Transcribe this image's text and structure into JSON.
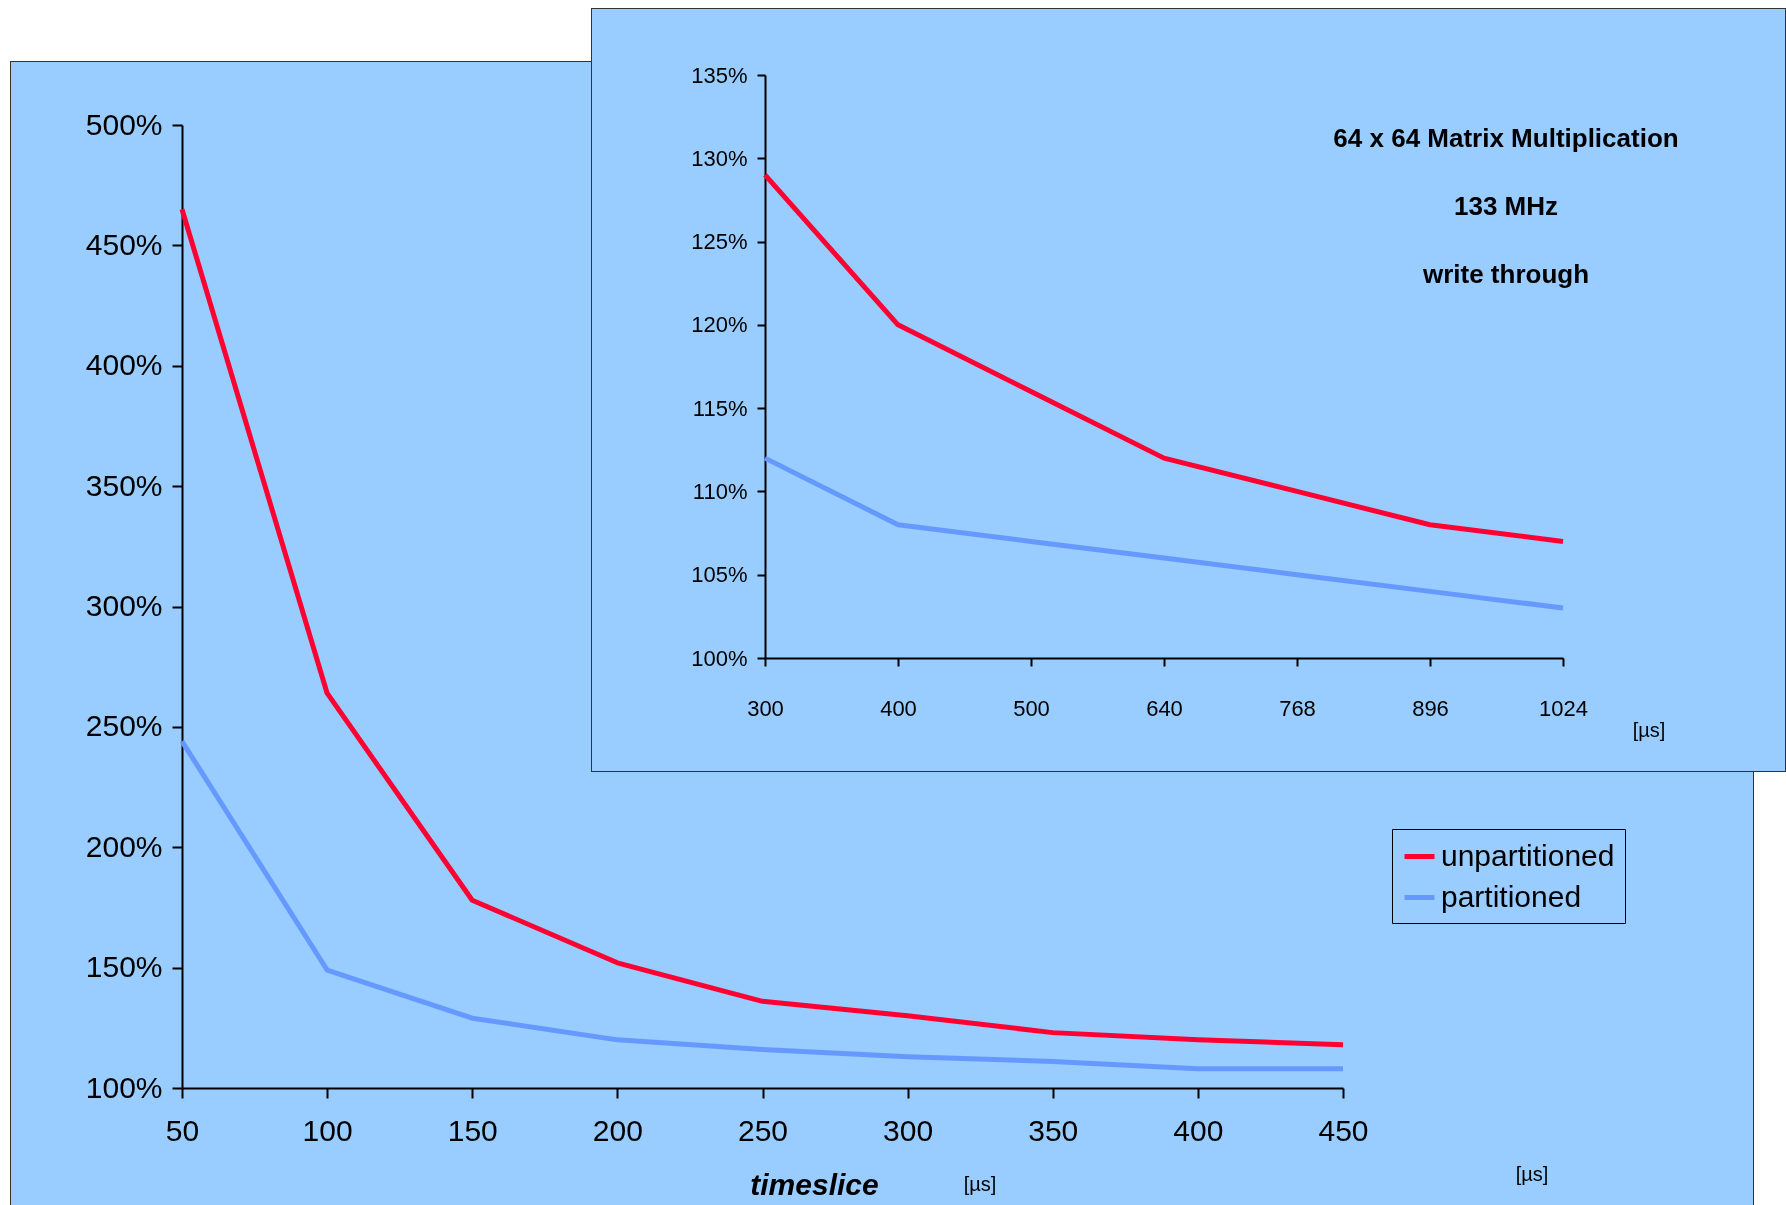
{
  "chart_data": [
    {
      "type": "line",
      "xlabel": "timeslice",
      "x": [
        50,
        100,
        150,
        200,
        250,
        300,
        350,
        400,
        450
      ],
      "series": [
        {
          "name": "unpartitioned",
          "color": "#ff0033",
          "values": [
            465,
            264,
            178,
            152,
            136,
            130,
            123,
            120,
            118
          ]
        },
        {
          "name": "partitioned",
          "color": "#6699ff",
          "values": [
            244,
            149,
            129,
            120,
            116,
            113,
            111,
            108,
            108
          ]
        }
      ],
      "xlim": [
        50,
        450
      ],
      "xticks": [
        50,
        100,
        150,
        200,
        250,
        300,
        350,
        400,
        450
      ],
      "ylim": [
        100,
        500
      ],
      "yticks": [
        {
          "value": 100,
          "label": "100%"
        },
        {
          "value": 150,
          "label": "150%"
        },
        {
          "value": 200,
          "label": "200%"
        },
        {
          "value": 250,
          "label": "250%"
        },
        {
          "value": 300,
          "label": "300%"
        },
        {
          "value": 350,
          "label": "350%"
        },
        {
          "value": 400,
          "label": "400%"
        },
        {
          "value": 450,
          "label": "450%"
        },
        {
          "value": 500,
          "label": "500%"
        }
      ],
      "legend": "right",
      "annotations": [
        "[µs]",
        "[µs]"
      ]
    },
    {
      "type": "line",
      "title": "64 x 64 Matrix Multiplication",
      "subtitle": "133 MHz\nwrite through",
      "categories": [
        "300",
        "400",
        "500",
        "640",
        "768",
        "896",
        "1024"
      ],
      "series": [
        {
          "color": "#ff0033",
          "values": [
            129,
            120,
            116,
            112,
            110,
            108,
            107
          ]
        },
        {
          "color": "#6699ff",
          "values": [
            112,
            108,
            107,
            106,
            105,
            104,
            103
          ]
        }
      ],
      "ylim": [
        100,
        135
      ],
      "yticks": [
        {
          "value": 100,
          "label": "100%"
        },
        {
          "value": 105,
          "label": "105%"
        },
        {
          "value": 110,
          "label": "110%"
        },
        {
          "value": 115,
          "label": "115%"
        },
        {
          "value": 120,
          "label": "120%"
        },
        {
          "value": 125,
          "label": "125%"
        },
        {
          "value": 130,
          "label": "130%"
        },
        {
          "value": 135,
          "label": "135%"
        }
      ],
      "annotations": [
        "[µs]"
      ]
    }
  ]
}
